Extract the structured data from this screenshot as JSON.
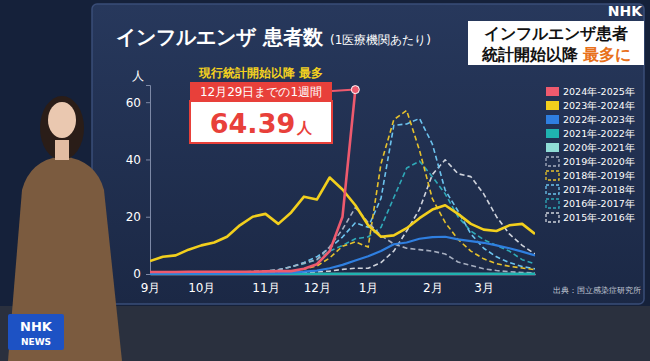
{
  "screen": {
    "logo": "NHK",
    "headline": {
      "line1": "インフルエンザ患者",
      "line2": "統計開始以降",
      "highlight": "最多に"
    },
    "news_logo": {
      "top": "NHK",
      "bottom": "NEWS"
    }
  },
  "chart_data": {
    "type": "line",
    "title": "インフルエンザ 患者数",
    "subtitle": "(1医療機関あたり)",
    "y_label": "人",
    "source": "出典：国立感染症研究所",
    "annotation": {
      "label": "現行統計開始以降 最多",
      "period": "12月29日までの1週間",
      "value": 64.39,
      "unit": "人"
    },
    "categories": [
      "9月",
      null,
      null,
      null,
      "10月",
      null,
      null,
      null,
      null,
      "11月",
      null,
      null,
      null,
      "12月",
      null,
      null,
      null,
      "1月",
      null,
      null,
      null,
      null,
      "2月",
      null,
      null,
      null,
      "3月",
      null,
      null,
      null,
      null
    ],
    "ylim": [
      0,
      66
    ],
    "yticks": [
      0,
      20,
      40,
      60
    ],
    "grid": false,
    "legend": "right",
    "series": [
      {
        "name": "2024年-2025年",
        "color": "#ee5a6e",
        "line_style": "solid",
        "values": [
          0.7,
          0.7,
          0.7,
          0.8,
          0.8,
          0.8,
          0.8,
          0.8,
          0.8,
          0.9,
          1.0,
          1.0,
          1.8,
          3.4,
          8.0,
          20.0,
          64.39,
          null,
          null,
          null,
          null,
          null,
          null,
          null,
          null,
          null,
          null,
          null,
          null,
          null,
          null
        ]
      },
      {
        "name": "2023年-2024年",
        "color": "#f2cf1d",
        "line_style": "solid",
        "values": [
          4.5,
          6.0,
          6.5,
          8.5,
          10.0,
          11.0,
          13.0,
          17.0,
          20.0,
          21.0,
          17.5,
          21.5,
          27.0,
          26.0,
          33.7,
          29.5,
          24.0,
          17.0,
          13.0,
          13.5,
          16.0,
          19.5,
          22.5,
          24.0,
          21.0,
          17.5,
          15.5,
          15.0,
          17.0,
          17.5,
          14.0
        ]
      },
      {
        "name": "2022年-2023年",
        "color": "#2f7fe0",
        "line_style": "solid",
        "values": [
          0.1,
          0.1,
          0.1,
          0.1,
          0.1,
          0.1,
          0.1,
          0.1,
          0.2,
          0.2,
          0.3,
          0.5,
          0.8,
          1.2,
          2.0,
          3.2,
          4.7,
          6.2,
          8.0,
          10.4,
          11.0,
          12.3,
          12.9,
          13.0,
          12.1,
          11.5,
          10.9,
          10.0,
          9.0,
          7.8,
          6.5
        ]
      },
      {
        "name": "2021年-2022年",
        "color": "#1fb3b0",
        "line_style": "solid",
        "values": [
          0.01,
          0.01,
          0.01,
          0.01,
          0.01,
          0.01,
          0.01,
          0.01,
          0.01,
          0.01,
          0.01,
          0.01,
          0.02,
          0.02,
          0.02,
          0.02,
          0.03,
          0.03,
          0.03,
          0.03,
          0.03,
          0.03,
          0.02,
          0.02,
          0.02,
          0.02,
          0.02,
          0.01,
          0.01,
          0.01,
          0.01
        ]
      },
      {
        "name": "2020年-2021年",
        "color": "#8fdcd6",
        "line_style": "solid",
        "values": [
          0.02,
          0.02,
          0.02,
          0.02,
          0.02,
          0.02,
          0.02,
          0.02,
          0.02,
          0.02,
          0.02,
          0.02,
          0.02,
          0.02,
          0.02,
          0.02,
          0.02,
          0.01,
          0.01,
          0.01,
          0.01,
          0.01,
          0.01,
          0.01,
          0.01,
          0.01,
          0.01,
          0.01,
          0.01,
          0.01,
          0.01
        ]
      },
      {
        "name": "2019年-2020年",
        "color": "#a7afc0",
        "line_style": "dashed",
        "values": [
          0.1,
          0.1,
          0.2,
          0.3,
          0.3,
          0.4,
          0.5,
          0.7,
          0.9,
          1.0,
          1.5,
          2.5,
          3.8,
          5.0,
          9.5,
          15.6,
          23.2,
          18.0,
          13.4,
          10.5,
          9.0,
          8.5,
          8.0,
          7.0,
          4.2,
          3.0,
          1.8,
          1.2,
          0.8,
          0.5,
          0.4
        ]
      },
      {
        "name": "2018年-2019年",
        "color": "#e6c22c",
        "line_style": "dashed",
        "values": [
          0.05,
          0.05,
          0.1,
          0.1,
          0.1,
          0.1,
          0.15,
          0.2,
          0.2,
          0.3,
          0.5,
          0.9,
          1.7,
          2.8,
          5.6,
          9.7,
          11.2,
          9.4,
          38.5,
          53.9,
          57.1,
          43.2,
          26.3,
          18.0,
          12.1,
          8.0,
          5.3,
          3.6,
          2.7,
          2.1,
          1.5
        ]
      },
      {
        "name": "2017年-2018年",
        "color": "#6cc3ee",
        "line_style": "dashed",
        "values": [
          0.05,
          0.05,
          0.1,
          0.1,
          0.1,
          0.2,
          0.3,
          0.4,
          0.6,
          0.8,
          1.5,
          2.5,
          4.0,
          6.0,
          9.0,
          12.9,
          17.9,
          16.3,
          26.4,
          51.9,
          52.4,
          54.3,
          45.4,
          29.3,
          22.0,
          14.0,
          9.0,
          6.0,
          4.0,
          2.6,
          1.8
        ]
      },
      {
        "name": "2016年-2017年",
        "color": "#2fa9b8",
        "line_style": "dashed",
        "values": [
          0.1,
          0.1,
          0.2,
          0.2,
          0.2,
          0.3,
          0.4,
          0.5,
          0.7,
          1.0,
          1.5,
          2.5,
          3.6,
          5.0,
          8.0,
          10.0,
          12.3,
          13.0,
          16.3,
          26.7,
          37.0,
          39.4,
          34.0,
          28.0,
          20.0,
          15.0,
          12.0,
          10.0,
          8.0,
          5.0,
          3.5
        ]
      },
      {
        "name": "2015年-2016年",
        "color": "#cfd3dc",
        "line_style": "dashed",
        "values": [
          0.05,
          0.05,
          0.05,
          0.05,
          0.1,
          0.1,
          0.1,
          0.1,
          0.2,
          0.2,
          0.3,
          0.4,
          0.5,
          0.8,
          1.0,
          1.6,
          2.0,
          2.0,
          4.0,
          8.0,
          15.0,
          22.6,
          34.7,
          39.9,
          35.0,
          34.0,
          28.0,
          20.0,
          14.0,
          10.0,
          7.0
        ]
      }
    ]
  }
}
